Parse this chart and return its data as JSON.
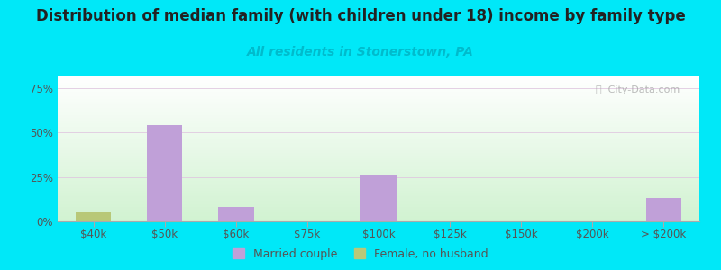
{
  "categories": [
    "$40k",
    "$50k",
    "$60k",
    "$75k",
    "$100k",
    "$125k",
    "$150k",
    "$200k",
    "> $200k"
  ],
  "married_couple": [
    0,
    54,
    8,
    0,
    26,
    0,
    0,
    0,
    13
  ],
  "female_no_husband": [
    5,
    0,
    0,
    0,
    0,
    0,
    0,
    0,
    0
  ],
  "married_color": "#c0a0d8",
  "female_color": "#b8c878",
  "title": "Distribution of median family (with children under 18) income by family type",
  "subtitle": "All residents in Stonerstown, PA",
  "title_fontsize": 12,
  "subtitle_fontsize": 10,
  "subtitle_color": "#00bbcc",
  "outer_bg": "#00e8f8",
  "ylabel_ticks": [
    "0%",
    "25%",
    "50%",
    "75%"
  ],
  "ytick_vals": [
    0,
    25,
    50,
    75
  ],
  "ylim": [
    0,
    82
  ],
  "watermark": "ⓘ  City-Data.com",
  "bar_width": 0.5,
  "legend_married": "Married couple",
  "legend_female": "Female, no husband"
}
